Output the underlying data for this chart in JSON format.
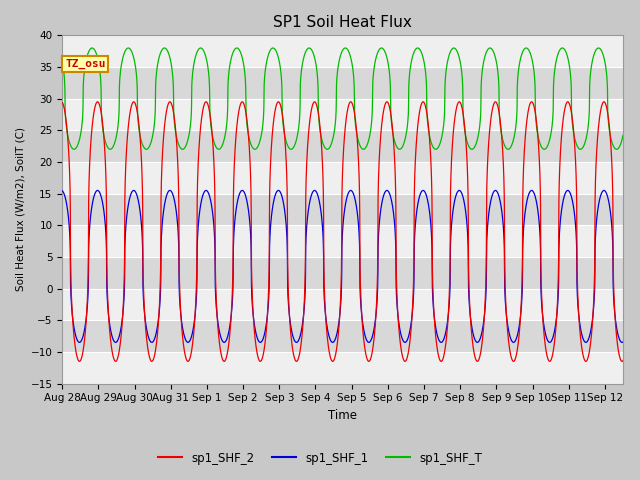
{
  "title": "SP1 Soil Heat Flux",
  "ylabel": "Soil Heat Flux (W/m2), SoilT (C)",
  "xlabel": "Time",
  "ylim": [
    -15,
    40
  ],
  "yticks": [
    -15,
    -10,
    -5,
    0,
    5,
    10,
    15,
    20,
    25,
    30,
    35,
    40
  ],
  "fig_bg_color": "#c8c8c8",
  "plot_bg_color": "#d8d8d8",
  "grid_color": "#ffffff",
  "line_colors": {
    "shf2": "#ee0000",
    "shf1": "#0000dd",
    "shft": "#00bb00"
  },
  "annotation_text": "TZ_osu",
  "annotation_bg": "#ffffaa",
  "annotation_border": "#cc8800",
  "annotation_text_color": "#cc0000",
  "legend_labels": [
    "sp1_SHF_2",
    "sp1_SHF_1",
    "sp1_SHF_T"
  ],
  "num_days": 15.5,
  "xtick_labels": [
    "Aug 28",
    "Aug 29",
    "Aug 30",
    "Aug 31",
    "Sep 1",
    "Sep 2",
    "Sep 3",
    "Sep 4",
    "Sep 5",
    "Sep 6",
    "Sep 7",
    "Sep 8",
    "Sep 9",
    "Sep 10",
    "Sep 11",
    "Sep 12"
  ],
  "shf2_amp": 20.5,
  "shf2_mid": 9.0,
  "shf1_amp": 12.0,
  "shf1_mid": 3.5,
  "shft_amp": 8.0,
  "shft_mid": 30.0,
  "sharpness": 2.5
}
